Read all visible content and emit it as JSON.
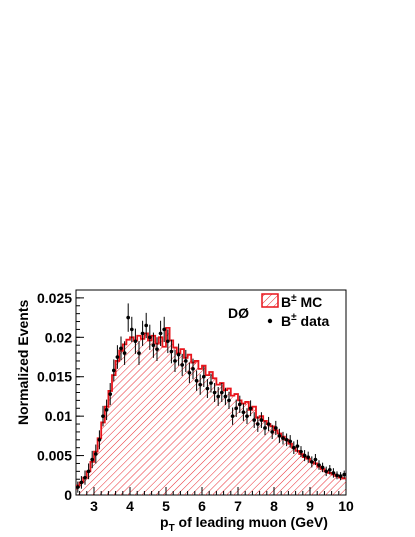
{
  "chart_data": {
    "type": "histogram",
    "experiment_label": "DØ",
    "xlabel_main": "p",
    "xlabel_sub": "T",
    "xlabel_rest": " of leading muon (GeV)",
    "ylabel": "Normalized Events",
    "xlim": [
      2.5,
      10
    ],
    "ylim": [
      0,
      0.026
    ],
    "x_ticks": [
      3,
      4,
      5,
      6,
      7,
      8,
      9,
      10
    ],
    "x_tick_labels": [
      "3",
      "4",
      "5",
      "6",
      "7",
      "8",
      "9",
      "10"
    ],
    "y_ticks": [
      0,
      0.005,
      0.01,
      0.015,
      0.02,
      0.025
    ],
    "y_tick_labels": [
      "0",
      "0.005",
      "0.01",
      "0.015",
      "0.02",
      "0.025"
    ],
    "bin_width": 0.1,
    "legend": {
      "mc_label": "B",
      "mc_suffix": " MC",
      "data_label": "B",
      "data_suffix": " data",
      "superscript": "±"
    },
    "mc_color": "#e8141b",
    "mc_bins_x_start": 2.5,
    "mc_values": [
      0.0012,
      0.0016,
      0.0022,
      0.003,
      0.0042,
      0.0055,
      0.0072,
      0.0092,
      0.0112,
      0.0132,
      0.0152,
      0.017,
      0.0183,
      0.0191,
      0.0197,
      0.02,
      0.0196,
      0.0202,
      0.0198,
      0.0205,
      0.0196,
      0.0202,
      0.0192,
      0.02,
      0.0188,
      0.0212,
      0.0196,
      0.0187,
      0.018,
      0.0185,
      0.0174,
      0.0178,
      0.0168,
      0.017,
      0.016,
      0.0164,
      0.0152,
      0.0156,
      0.0148,
      0.014,
      0.0142,
      0.0133,
      0.0135,
      0.0126,
      0.0128,
      0.012,
      0.0116,
      0.0118,
      0.0108,
      0.0112,
      0.0098,
      0.01,
      0.0094,
      0.009,
      0.0087,
      0.0082,
      0.0078,
      0.0074,
      0.007,
      0.0065,
      0.006,
      0.0056,
      0.0052,
      0.0048,
      0.0046,
      0.0042,
      0.004,
      0.0036,
      0.0033,
      0.003,
      0.0028,
      0.0026,
      0.0024,
      0.0022,
      0.0021
    ],
    "data_points": [
      {
        "x": 2.55,
        "y": 0.001,
        "e": 0.0007
      },
      {
        "x": 2.65,
        "y": 0.0016,
        "e": 0.0008
      },
      {
        "x": 2.75,
        "y": 0.0022,
        "e": 0.0009
      },
      {
        "x": 2.85,
        "y": 0.003,
        "e": 0.001
      },
      {
        "x": 2.95,
        "y": 0.0045,
        "e": 0.0011
      },
      {
        "x": 3.05,
        "y": 0.0052,
        "e": 0.0012
      },
      {
        "x": 3.15,
        "y": 0.007,
        "e": 0.0012
      },
      {
        "x": 3.25,
        "y": 0.01,
        "e": 0.0013
      },
      {
        "x": 3.35,
        "y": 0.0108,
        "e": 0.0013
      },
      {
        "x": 3.45,
        "y": 0.0128,
        "e": 0.0014
      },
      {
        "x": 3.55,
        "y": 0.0158,
        "e": 0.0014
      },
      {
        "x": 3.65,
        "y": 0.0175,
        "e": 0.0015
      },
      {
        "x": 3.75,
        "y": 0.0186,
        "e": 0.0015
      },
      {
        "x": 3.85,
        "y": 0.018,
        "e": 0.0015
      },
      {
        "x": 3.95,
        "y": 0.0225,
        "e": 0.0018
      },
      {
        "x": 4.05,
        "y": 0.021,
        "e": 0.0016
      },
      {
        "x": 4.15,
        "y": 0.0195,
        "e": 0.0016
      },
      {
        "x": 4.25,
        "y": 0.018,
        "e": 0.0015
      },
      {
        "x": 4.35,
        "y": 0.0205,
        "e": 0.0016
      },
      {
        "x": 4.45,
        "y": 0.0215,
        "e": 0.0016
      },
      {
        "x": 4.55,
        "y": 0.02,
        "e": 0.0016
      },
      {
        "x": 4.65,
        "y": 0.019,
        "e": 0.0016
      },
      {
        "x": 4.75,
        "y": 0.0185,
        "e": 0.0015
      },
      {
        "x": 4.85,
        "y": 0.0205,
        "e": 0.0016
      },
      {
        "x": 4.95,
        "y": 0.021,
        "e": 0.0016
      },
      {
        "x": 5.05,
        "y": 0.0195,
        "e": 0.0015
      },
      {
        "x": 5.15,
        "y": 0.0182,
        "e": 0.0015
      },
      {
        "x": 5.25,
        "y": 0.017,
        "e": 0.0014
      },
      {
        "x": 5.35,
        "y": 0.0178,
        "e": 0.0014
      },
      {
        "x": 5.45,
        "y": 0.0165,
        "e": 0.0014
      },
      {
        "x": 5.55,
        "y": 0.017,
        "e": 0.0014
      },
      {
        "x": 5.65,
        "y": 0.0155,
        "e": 0.0013
      },
      {
        "x": 5.75,
        "y": 0.016,
        "e": 0.0013
      },
      {
        "x": 5.85,
        "y": 0.0145,
        "e": 0.0013
      },
      {
        "x": 5.95,
        "y": 0.014,
        "e": 0.0013
      },
      {
        "x": 6.05,
        "y": 0.015,
        "e": 0.0013
      },
      {
        "x": 6.15,
        "y": 0.0135,
        "e": 0.0012
      },
      {
        "x": 6.25,
        "y": 0.0142,
        "e": 0.0012
      },
      {
        "x": 6.35,
        "y": 0.013,
        "e": 0.0012
      },
      {
        "x": 6.45,
        "y": 0.0125,
        "e": 0.0012
      },
      {
        "x": 6.55,
        "y": 0.013,
        "e": 0.0012
      },
      {
        "x": 6.65,
        "y": 0.0125,
        "e": 0.0011
      },
      {
        "x": 6.75,
        "y": 0.012,
        "e": 0.0011
      },
      {
        "x": 6.85,
        "y": 0.01,
        "e": 0.0011
      },
      {
        "x": 6.95,
        "y": 0.011,
        "e": 0.0011
      },
      {
        "x": 7.05,
        "y": 0.0115,
        "e": 0.0011
      },
      {
        "x": 7.15,
        "y": 0.0105,
        "e": 0.0011
      },
      {
        "x": 7.25,
        "y": 0.01,
        "e": 0.001
      },
      {
        "x": 7.35,
        "y": 0.011,
        "e": 0.001
      },
      {
        "x": 7.45,
        "y": 0.0095,
        "e": 0.001
      },
      {
        "x": 7.55,
        "y": 0.009,
        "e": 0.001
      },
      {
        "x": 7.65,
        "y": 0.0095,
        "e": 0.001
      },
      {
        "x": 7.75,
        "y": 0.0085,
        "e": 0.0009
      },
      {
        "x": 7.85,
        "y": 0.009,
        "e": 0.0009
      },
      {
        "x": 7.95,
        "y": 0.008,
        "e": 0.0009
      },
      {
        "x": 8.05,
        "y": 0.0085,
        "e": 0.0009
      },
      {
        "x": 8.15,
        "y": 0.0075,
        "e": 0.0009
      },
      {
        "x": 8.25,
        "y": 0.0072,
        "e": 0.0008
      },
      {
        "x": 8.35,
        "y": 0.007,
        "e": 0.0008
      },
      {
        "x": 8.45,
        "y": 0.0068,
        "e": 0.0008
      },
      {
        "x": 8.55,
        "y": 0.006,
        "e": 0.0008
      },
      {
        "x": 8.65,
        "y": 0.0062,
        "e": 0.0008
      },
      {
        "x": 8.75,
        "y": 0.0055,
        "e": 0.0007
      },
      {
        "x": 8.85,
        "y": 0.005,
        "e": 0.0007
      },
      {
        "x": 8.95,
        "y": 0.0048,
        "e": 0.0007
      },
      {
        "x": 9.05,
        "y": 0.0042,
        "e": 0.0007
      },
      {
        "x": 9.15,
        "y": 0.0045,
        "e": 0.0007
      },
      {
        "x": 9.25,
        "y": 0.0038,
        "e": 0.0006
      },
      {
        "x": 9.35,
        "y": 0.0035,
        "e": 0.0006
      },
      {
        "x": 9.45,
        "y": 0.003,
        "e": 0.0006
      },
      {
        "x": 9.55,
        "y": 0.0032,
        "e": 0.0006
      },
      {
        "x": 9.65,
        "y": 0.0028,
        "e": 0.0006
      },
      {
        "x": 9.75,
        "y": 0.0025,
        "e": 0.0005
      },
      {
        "x": 9.85,
        "y": 0.0024,
        "e": 0.0005
      },
      {
        "x": 9.95,
        "y": 0.0026,
        "e": 0.0005
      }
    ]
  }
}
